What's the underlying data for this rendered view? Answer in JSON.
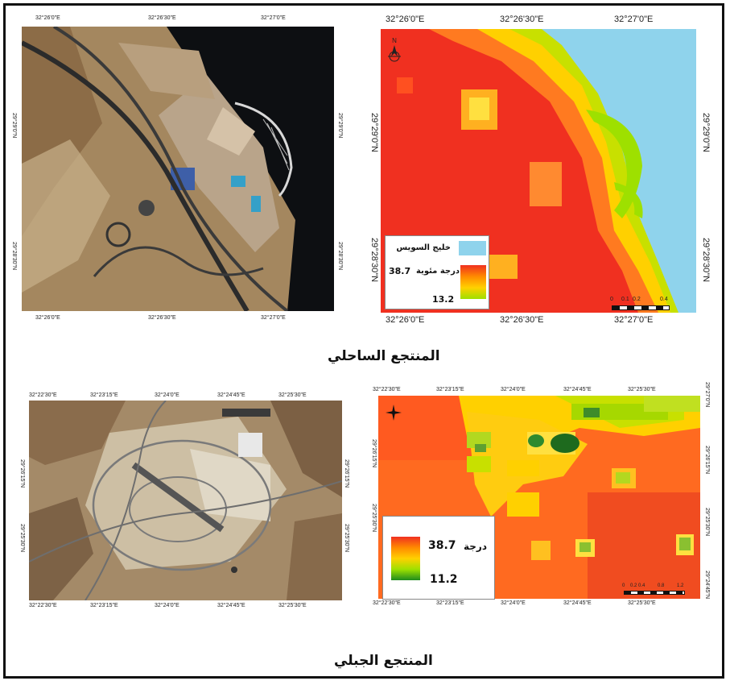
{
  "coastal": {
    "caption": "المنتجع الساحلي",
    "satellite": {
      "top_ticks": [
        "32°26'0\"E",
        "32°26'30\"E",
        "32°27'0\"E"
      ],
      "bottom_ticks": [
        "32°26'0\"E",
        "32°26'30\"E",
        "32°27'0\"E"
      ],
      "left_ticks": [
        "29°29'0\"N",
        "29°28'30\"N"
      ],
      "right_ticks": [
        "29°29'0\"N",
        "29°28'30\"N"
      ]
    },
    "thermal": {
      "top_ticks": [
        "32°26'0\"E",
        "32°26'30\"E",
        "32°27'0\"E"
      ],
      "bottom_ticks": [
        "32°26'0\"E",
        "32°26'30\"E",
        "32°27'0\"E"
      ],
      "left_ticks": [
        "29°29'0\"N",
        "29°28'30\"N"
      ],
      "right_ticks": [
        "29°29'0\"N",
        "29°28'30\"N"
      ],
      "legend": {
        "water_label": "خليج السويس",
        "temp_label": "درجة مئوية",
        "max": "38.7",
        "min": "13.2",
        "water_color": "#8fd3ec"
      },
      "scale": [
        "0",
        "0.1",
        "0.2",
        "0.4"
      ]
    }
  },
  "mountain": {
    "caption": "المنتجع الجبلي",
    "satellite": {
      "top_ticks": [
        "32°22'30\"E",
        "32°23'15\"E",
        "32°24'0\"E",
        "32°24'45\"E",
        "32°25'30\"E"
      ],
      "bottom_ticks": [
        "32°22'30\"E",
        "32°23'15\"E",
        "32°24'0\"E",
        "32°24'45\"E",
        "32°25'30\"E"
      ],
      "left_ticks": [
        "29°26'15\"N",
        "29°25'30\"N"
      ],
      "right_ticks": [
        "29°26'15\"N",
        "29°25'30\"N"
      ]
    },
    "thermal": {
      "top_ticks": [
        "32°22'30\"E",
        "32°23'15\"E",
        "32°24'0\"E",
        "32°24'45\"E",
        "32°25'30\"E"
      ],
      "bottom_ticks": [
        "32°22'30\"E",
        "32°23'15\"E",
        "32°24'0\"E",
        "32°24'45\"E",
        "32°25'30\"E"
      ],
      "left_ticks": [
        "29°26'15\"N",
        "29°25'30\"N"
      ],
      "right_ticks": [
        "29°27'0\"N",
        "29°26'15\"N",
        "29°25'30\"N",
        "29°24'45\"N"
      ],
      "legend": {
        "temp_label": "درجة",
        "max": "38.7",
        "min": "11.2"
      },
      "scale": [
        "0",
        "0.2",
        "0.4",
        "0.8",
        "1.2"
      ]
    }
  },
  "colors": {
    "hot": "#f03020",
    "warm": "#ff7a20",
    "mid": "#ffd000",
    "cool": "#9ee000",
    "cold": "#1e8c1e",
    "sea": "#8fd3ec"
  }
}
